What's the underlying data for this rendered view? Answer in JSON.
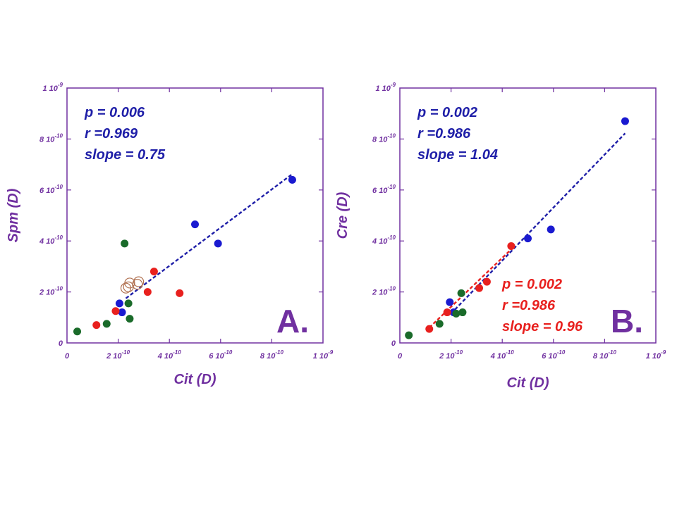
{
  "colors": {
    "frame": "#7030a0",
    "blue": "#1a1ad0",
    "green": "#1a6b2a",
    "red": "#e8201e",
    "fit_blue": "#1f1fa8",
    "fit_red": "#e8201e",
    "open_circle": "#b07050"
  },
  "chart_data": [
    {
      "type": "scatter",
      "panel_label": "A.",
      "xlabel": "Cit (D)",
      "ylabel": "Spm (D)",
      "xlim": [
        0,
        1e-09
      ],
      "ylim": [
        0,
        1e-09
      ],
      "x_ticks": [
        {
          "value": 0,
          "base": "0",
          "exp": ""
        },
        {
          "value": 2e-10,
          "base": "2 10",
          "exp": "-10"
        },
        {
          "value": 4e-10,
          "base": "4 10",
          "exp": "-10"
        },
        {
          "value": 6e-10,
          "base": "6 10",
          "exp": "-10"
        },
        {
          "value": 8e-10,
          "base": "8 10",
          "exp": "-10"
        },
        {
          "value": 1e-09,
          "base": "1 10",
          "exp": "-9"
        }
      ],
      "y_ticks": [
        {
          "value": 0,
          "base": "0",
          "exp": ""
        },
        {
          "value": 2e-10,
          "base": "2 10",
          "exp": "-10"
        },
        {
          "value": 4e-10,
          "base": "4 10",
          "exp": "-10"
        },
        {
          "value": 6e-10,
          "base": "6 10",
          "exp": "-10"
        },
        {
          "value": 8e-10,
          "base": "8 10",
          "exp": "-10"
        },
        {
          "value": 1e-09,
          "base": "1 10",
          "exp": "-9"
        }
      ],
      "series": [
        {
          "name": "blue",
          "color": "blue",
          "filled": true,
          "x": [
            8.8e-10,
            5e-10,
            5.9e-10,
            2.05e-10,
            2.15e-10
          ],
          "y": [
            6.4e-10,
            4.65e-10,
            3.9e-10,
            1.55e-10,
            1.2e-10
          ]
        },
        {
          "name": "green",
          "color": "green",
          "filled": true,
          "x": [
            4e-11,
            1.55e-10,
            2.25e-10,
            2.4e-10,
            2.45e-10
          ],
          "y": [
            4.5e-11,
            7.5e-11,
            3.9e-10,
            1.55e-10,
            9.5e-11
          ]
        },
        {
          "name": "red",
          "color": "red",
          "filled": true,
          "x": [
            1.15e-10,
            1.9e-10,
            3.15e-10,
            3.4e-10,
            4.4e-10
          ],
          "y": [
            7e-11,
            1.25e-10,
            2e-10,
            2.8e-10,
            1.95e-10
          ]
        },
        {
          "name": "open",
          "color": "open_circle",
          "filled": false,
          "x": [
            2.3e-10,
            2.4e-10,
            2.45e-10,
            2.8e-10,
            2.75e-10
          ],
          "y": [
            2.15e-10,
            2.2e-10,
            2.35e-10,
            2.4e-10,
            2.3e-10
          ]
        }
      ],
      "fits": [
        {
          "color": "fit_blue",
          "x0": 2.3e-10,
          "x1": 8.8e-10,
          "slope": 0.75,
          "y0": 1.75e-10
        }
      ],
      "annotations": [
        {
          "color": "blue",
          "lines": [
            "p = 0.006",
            "r =0.969",
            "slope = 0.75"
          ]
        }
      ]
    },
    {
      "type": "scatter",
      "panel_label": "B.",
      "xlabel": "Cit (D)",
      "ylabel": "Cre (D)",
      "xlim": [
        0,
        1e-09
      ],
      "ylim": [
        0,
        1e-09
      ],
      "x_ticks": [
        {
          "value": 0,
          "base": "0",
          "exp": ""
        },
        {
          "value": 2e-10,
          "base": "2 10",
          "exp": "-10"
        },
        {
          "value": 4e-10,
          "base": "4 10",
          "exp": "-10"
        },
        {
          "value": 6e-10,
          "base": "6 10",
          "exp": "-10"
        },
        {
          "value": 8e-10,
          "base": "8 10",
          "exp": "-10"
        },
        {
          "value": 1e-09,
          "base": "1 10",
          "exp": "-9"
        }
      ],
      "y_ticks": [
        {
          "value": 0,
          "base": "0",
          "exp": ""
        },
        {
          "value": 2e-10,
          "base": "2 10",
          "exp": "-10"
        },
        {
          "value": 4e-10,
          "base": "4 10",
          "exp": "-10"
        },
        {
          "value": 6e-10,
          "base": "6 10",
          "exp": "-10"
        },
        {
          "value": 8e-10,
          "base": "8 10",
          "exp": "-10"
        },
        {
          "value": 1e-09,
          "base": "1 10",
          "exp": "-9"
        }
      ],
      "series": [
        {
          "name": "blue",
          "color": "blue",
          "filled": true,
          "x": [
            8.8e-10,
            5e-10,
            5.9e-10,
            1.95e-10,
            2.1e-10
          ],
          "y": [
            8.7e-10,
            4.1e-10,
            4.45e-10,
            1.6e-10,
            1.2e-10
          ]
        },
        {
          "name": "green",
          "color": "green",
          "filled": true,
          "x": [
            3.5e-11,
            1.55e-10,
            2.2e-10,
            2.45e-10,
            2.4e-10
          ],
          "y": [
            3e-11,
            7.5e-11,
            1.15e-10,
            1.2e-10,
            1.95e-10
          ]
        },
        {
          "name": "red",
          "color": "red",
          "filled": true,
          "x": [
            1.15e-10,
            1.85e-10,
            3.1e-10,
            3.4e-10,
            4.35e-10
          ],
          "y": [
            5.5e-11,
            1.2e-10,
            2.15e-10,
            2.4e-10,
            3.8e-10
          ]
        }
      ],
      "fits": [
        {
          "color": "fit_blue",
          "x0": 2e-10,
          "x1": 8.8e-10,
          "slope": 1.04,
          "y0": 1.15e-10
        },
        {
          "color": "fit_red",
          "x0": 1.15e-10,
          "x1": 4.4e-10,
          "slope": 0.96,
          "y0": 6e-11
        }
      ],
      "annotations": [
        {
          "color": "blue",
          "lines": [
            "p = 0.002",
            "r =0.986",
            "slope = 1.04"
          ]
        },
        {
          "color": "red",
          "lines": [
            "p = 0.002",
            "r =0.986",
            "slope = 0.96"
          ]
        }
      ]
    }
  ]
}
